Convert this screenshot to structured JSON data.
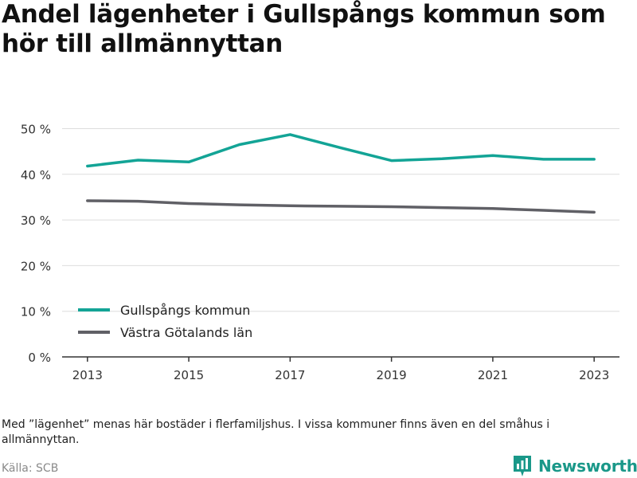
{
  "title": "Andel lägenheter i Gullspångs kommun som hör till allmännyttan",
  "note": "Med ”lägenhet” menas här bostäder i flerfamiljshus. I vissa kommuner finns även en del småhus i allmännyttan.",
  "source": "Källa: SCB",
  "brand": {
    "name": "Newsworthy",
    "logo_icon": "bar-chart-logo-icon"
  },
  "colors": {
    "series_1": "#13a496",
    "series_2": "#606066",
    "grid": "#dddddd",
    "axis": "#333333",
    "brand": "#1a9889"
  },
  "chart_data": {
    "type": "line",
    "x": [
      2013,
      2014,
      2015,
      2016,
      2017,
      2018,
      2019,
      2020,
      2021,
      2022,
      2023
    ],
    "x_tick_labels": [
      "2013",
      "2015",
      "2017",
      "2019",
      "2021",
      "2023"
    ],
    "x_tick_values": [
      2013,
      2015,
      2017,
      2019,
      2021,
      2023
    ],
    "xlim": [
      2012.5,
      2023.5
    ],
    "ylim": [
      0,
      52
    ],
    "y_ticks": [
      0,
      10,
      20,
      30,
      40,
      50
    ],
    "y_tick_labels": [
      "0 %",
      "10 %",
      "20 %",
      "30 %",
      "40 %",
      "50 %"
    ],
    "grid": true,
    "legend_position": "bottom-left",
    "series": [
      {
        "name": "Gullspångs kommun",
        "color": "#13a496",
        "values": [
          41.8,
          43.1,
          42.7,
          46.5,
          48.7,
          45.8,
          43.0,
          43.4,
          44.1,
          43.3,
          43.3
        ]
      },
      {
        "name": "Västra Götalands län",
        "color": "#606066",
        "values": [
          34.2,
          34.1,
          33.6,
          33.3,
          33.1,
          33.0,
          32.9,
          32.7,
          32.5,
          32.1,
          31.7
        ]
      }
    ]
  }
}
